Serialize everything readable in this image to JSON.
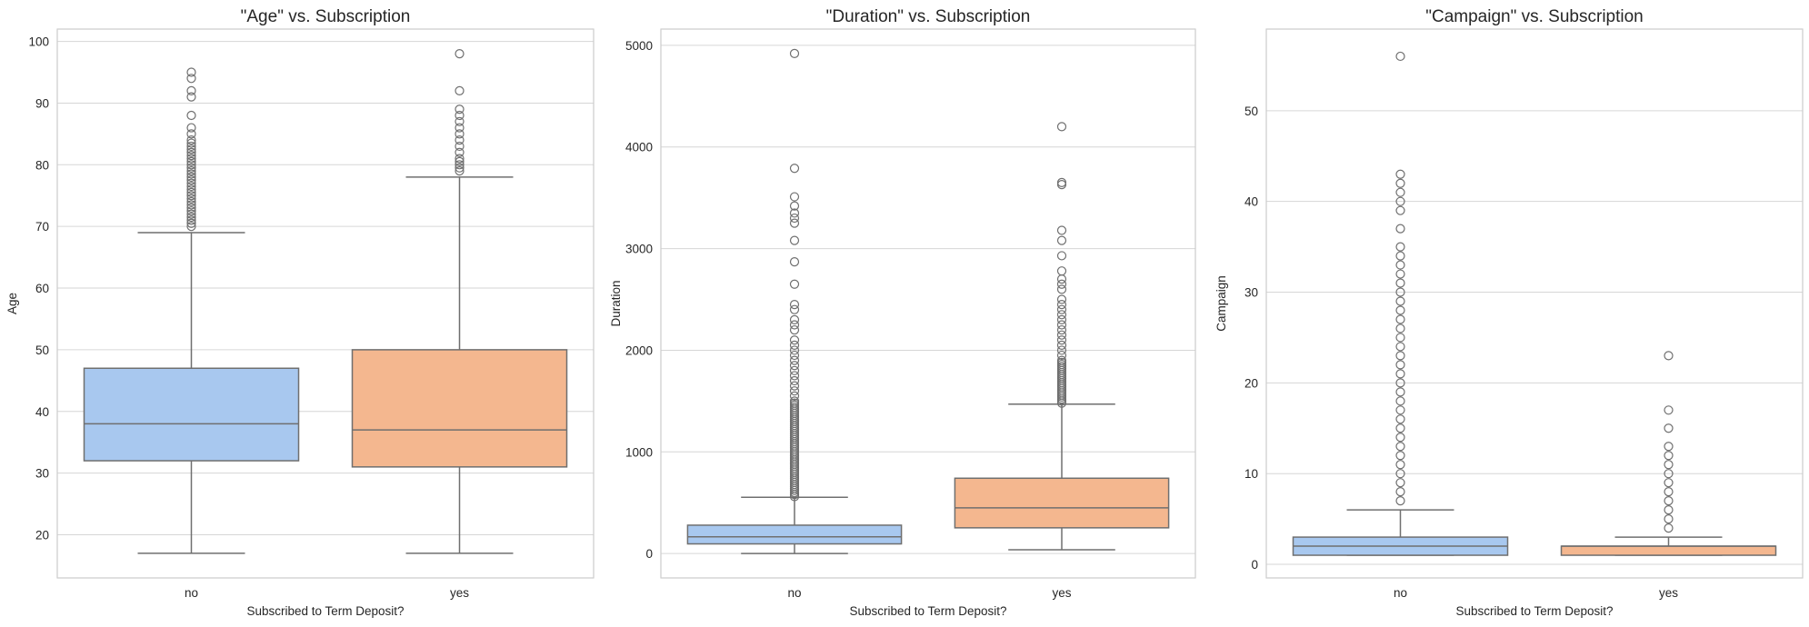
{
  "colors": {
    "no": "#a8c8ef",
    "yes": "#f4b78f"
  },
  "chart_data": [
    {
      "type": "box",
      "title": "\"Age\" vs. Subscription",
      "xlabel": "Subscribed to Term Deposit?",
      "ylabel": "Age",
      "categories": [
        "no",
        "yes"
      ],
      "ylim": [
        13,
        102
      ],
      "yticks": [
        20,
        30,
        40,
        50,
        60,
        70,
        80,
        90,
        100
      ],
      "boxes": [
        {
          "category": "no",
          "whislo": 17,
          "q1": 32,
          "med": 38,
          "q3": 47,
          "whishi": 69,
          "fliers": [
            70,
            70.5,
            71,
            71.5,
            72,
            72.5,
            73,
            73.5,
            74,
            74.5,
            75,
            75.5,
            76,
            76.5,
            77,
            77.5,
            78,
            78.5,
            79,
            79.5,
            80,
            80.5,
            81,
            81.5,
            82,
            82.5,
            83,
            83.5,
            84,
            85,
            86,
            88,
            91,
            92,
            94,
            95
          ]
        },
        {
          "category": "yes",
          "whislo": 17,
          "q1": 31,
          "med": 37,
          "q3": 50,
          "whishi": 78,
          "fliers": [
            79,
            79.5,
            80,
            80.5,
            81,
            82,
            83,
            84,
            85,
            86,
            87,
            88,
            89,
            92,
            98
          ]
        }
      ]
    },
    {
      "type": "box",
      "title": "\"Duration\" vs. Subscription",
      "xlabel": "Subscribed to Term Deposit?",
      "ylabel": "Duration",
      "categories": [
        "no",
        "yes"
      ],
      "ylim": [
        -240,
        5160
      ],
      "yticks": [
        0,
        1000,
        2000,
        3000,
        4000,
        5000
      ],
      "boxes": [
        {
          "category": "no",
          "whislo": 0,
          "q1": 95,
          "med": 164,
          "q3": 279,
          "whishi": 554,
          "fliers": [
            560,
            580,
            600,
            620,
            640,
            660,
            680,
            700,
            720,
            740,
            760,
            780,
            800,
            820,
            840,
            860,
            880,
            900,
            920,
            940,
            960,
            980,
            1000,
            1020,
            1040,
            1060,
            1080,
            1100,
            1120,
            1140,
            1160,
            1180,
            1200,
            1220,
            1240,
            1260,
            1280,
            1300,
            1320,
            1340,
            1360,
            1380,
            1400,
            1420,
            1440,
            1460,
            1480,
            1500,
            1550,
            1600,
            1650,
            1700,
            1750,
            1800,
            1850,
            1900,
            1950,
            2000,
            2050,
            2100,
            2200,
            2250,
            2300,
            2400,
            2450,
            2650,
            2870,
            3080,
            3250,
            3300,
            3350,
            3420,
            3510,
            3790,
            4920
          ]
        },
        {
          "category": "yes",
          "whislo": 37,
          "q1": 253,
          "med": 449,
          "q3": 741,
          "whishi": 1470,
          "fliers": [
            1480,
            1500,
            1520,
            1540,
            1560,
            1580,
            1600,
            1620,
            1640,
            1660,
            1680,
            1700,
            1720,
            1740,
            1760,
            1780,
            1800,
            1820,
            1840,
            1860,
            1880,
            1900,
            1950,
            2000,
            2050,
            2100,
            2150,
            2200,
            2250,
            2300,
            2350,
            2400,
            2450,
            2500,
            2600,
            2650,
            2700,
            2780,
            2930,
            3080,
            3180,
            3630,
            3650,
            4200
          ]
        }
      ]
    },
    {
      "type": "box",
      "title": "\"Campaign\" vs. Subscription",
      "xlabel": "Subscribed to Term Deposit?",
      "ylabel": "Campaign",
      "categories": [
        "no",
        "yes"
      ],
      "ylim": [
        -1.5,
        59
      ],
      "yticks": [
        0,
        10,
        20,
        30,
        40,
        50
      ],
      "boxes": [
        {
          "category": "no",
          "whislo": 1,
          "q1": 1,
          "med": 2,
          "q3": 3,
          "whishi": 6,
          "fliers": [
            7,
            8,
            9,
            10,
            11,
            12,
            13,
            14,
            15,
            16,
            17,
            18,
            19,
            20,
            21,
            22,
            23,
            24,
            25,
            26,
            27,
            28,
            29,
            30,
            31,
            32,
            33,
            34,
            35,
            37,
            39,
            40,
            41,
            42,
            43,
            56
          ]
        },
        {
          "category": "yes",
          "whislo": 1,
          "q1": 1,
          "med": 2,
          "q3": 2,
          "whishi": 3,
          "fliers": [
            4,
            5,
            6,
            7,
            8,
            9,
            10,
            11,
            12,
            13,
            15,
            17,
            23
          ]
        }
      ]
    }
  ]
}
